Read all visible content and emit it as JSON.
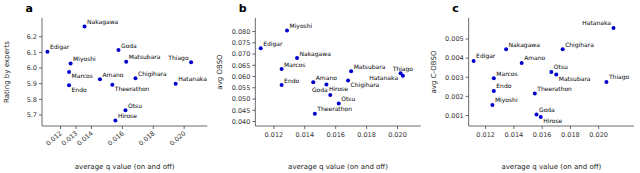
{
  "chart_data": [
    {
      "type": "scatter",
      "title": "a",
      "x_label": "average q value (on and off)",
      "y_label": "Rating by experts",
      "color": "#0000cc",
      "grid": false,
      "xlim": [
        0.0108,
        0.0215
      ],
      "ylim": [
        5.63,
        6.32
      ],
      "xticks": [
        0.012,
        0.013,
        0.014,
        0.016,
        0.018,
        {
          "value": 0.02,
          "label": "0.020"
        }
      ],
      "yticks": [
        5.7,
        5.8,
        5.9,
        {
          "value": 6,
          "label": "6.0"
        },
        6.1,
        6.2
      ],
      "annotations": [
        "Nakagawa",
        "Edigar",
        "Miyoshi",
        "Marcos",
        "Endo",
        "Goda",
        "Matsubara",
        "Amano",
        "Theerathon",
        "Chigihara",
        "Hatanaka",
        "Thiago",
        "Otsu",
        "Hirose"
      ],
      "x": [
        0.01355,
        0.01115,
        0.01265,
        0.01255,
        0.01255,
        0.01575,
        0.01625,
        0.01455,
        0.01535,
        0.01685,
        0.01945,
        0.02045,
        0.0162,
        0.01555
      ],
      "values": [
        6.265,
        6.105,
        6.03,
        5.975,
        5.89,
        6.115,
        6.04,
        5.928,
        5.893,
        5.935,
        5.9,
        6.038,
        5.73,
        5.665
      ]
    },
    {
      "type": "scatter",
      "title": "b",
      "x_label": "average q value (on and off)",
      "y_label": "avg OBSO",
      "color": "#0000cc",
      "grid": false,
      "xlim": [
        0.0108,
        0.0215
      ],
      "ylim": [
        0.038,
        0.086
      ],
      "xticks": [
        0.012,
        0.014,
        0.016,
        0.018,
        {
          "value": 0.02,
          "label": "0.020"
        }
      ],
      "yticks": [
        {
          "value": 0.04,
          "label": "0.040"
        },
        0.045,
        {
          "value": 0.05,
          "label": "0.050"
        },
        0.055,
        {
          "value": 0.06,
          "label": "0.060"
        },
        0.065,
        {
          "value": 0.07,
          "label": "0.070"
        },
        0.075,
        {
          "value": 0.08,
          "label": "0.080"
        }
      ],
      "annotations": [
        "Miyoshi",
        "Edigar",
        "Nakagawa",
        "Marcos",
        "Endo",
        "Amano",
        "Hirose",
        "Matsubara",
        "Chigihara",
        "Hatanaka",
        "Thiago",
        "Goda",
        "Otsu",
        "Theerathon"
      ],
      "x": [
        0.01285,
        0.01115,
        0.0135,
        0.0125,
        0.0125,
        0.01455,
        0.0154,
        0.017,
        0.0168,
        0.0202,
        0.02035,
        0.01565,
        0.0162,
        0.01465
      ],
      "values": [
        0.0805,
        0.0726,
        0.0682,
        0.0633,
        0.0562,
        0.0574,
        0.0565,
        0.0623,
        0.0582,
        0.0615,
        0.0603,
        0.0518,
        0.048,
        0.0435
      ]
    },
    {
      "type": "scatter",
      "title": "c",
      "x_label": "average q value (on and off)",
      "y_label": "avg C-OBSO",
      "color": "#0000cc",
      "grid": false,
      "xlim": [
        0.0108,
        0.0225
      ],
      "ylim": [
        0.00045,
        0.0061
      ],
      "xticks": [
        0.012,
        0.014,
        0.016,
        0.018,
        {
          "value": 0.02,
          "label": "0.020"
        }
      ],
      "yticks": [
        0.001,
        0.002,
        0.003,
        0.004,
        0.005
      ],
      "annotations": [
        "Hatanaka",
        "Nakagawa",
        "Chigihara",
        "Edigar",
        "Amano",
        "Otsu",
        "Matsubara",
        "Marcos",
        "Thiago",
        "Endo",
        "Theerathon",
        "Miyoshi",
        "Goda",
        "Hirose"
      ],
      "x": [
        0.02105,
        0.01345,
        0.01745,
        0.01115,
        0.01455,
        0.01665,
        0.017,
        0.01258,
        0.02055,
        0.01258,
        0.01548,
        0.01248,
        0.0156,
        0.0159
      ],
      "values": [
        0.00558,
        0.00447,
        0.00447,
        0.00385,
        0.00375,
        0.00328,
        0.00315,
        0.00295,
        0.00275,
        0.00228,
        0.00215,
        0.00155,
        0.00105,
        0.00092
      ]
    }
  ]
}
